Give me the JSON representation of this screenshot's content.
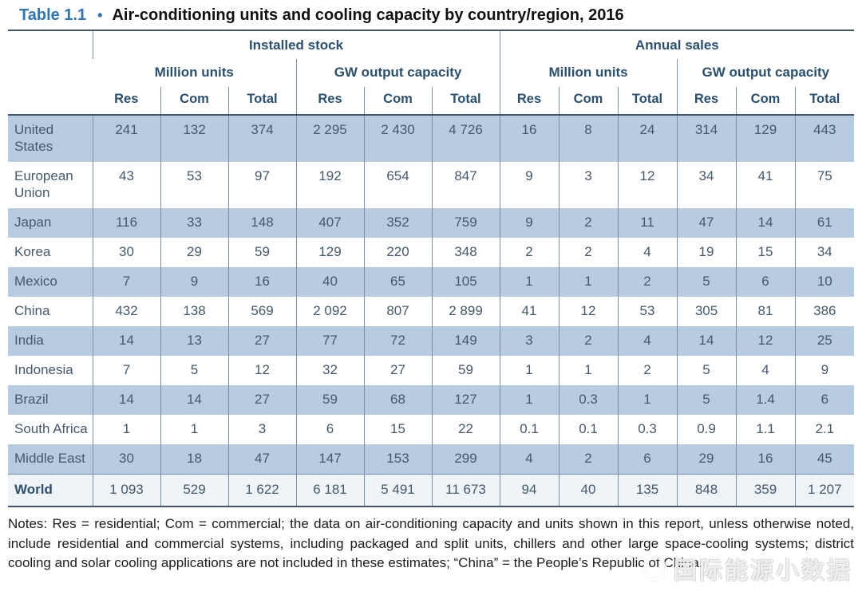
{
  "title": {
    "table_label": "Table 1.1",
    "bullet": "•",
    "text": "Air-conditioning units and cooling capacity by country/region, 2016"
  },
  "table": {
    "col_groups": [
      "Installed stock",
      "Annual sales"
    ],
    "sub_groups": [
      "Million units",
      "GW output capacity",
      "Million units",
      "GW output capacity"
    ],
    "unit_headers": [
      "Res",
      "Com",
      "Total",
      "Res",
      "Com",
      "Total",
      "Res",
      "Com",
      "Total",
      "Res",
      "Com",
      "Total"
    ],
    "rows": [
      {
        "label": "United States",
        "shade": "blue",
        "values": [
          "241",
          "132",
          "374",
          "2 295",
          "2 430",
          "4 726",
          "16",
          "8",
          "24",
          "314",
          "129",
          "443"
        ]
      },
      {
        "label": "European Union",
        "shade": "white",
        "values": [
          "43",
          "53",
          "97",
          "192",
          "654",
          "847",
          "9",
          "3",
          "12",
          "34",
          "41",
          "75"
        ]
      },
      {
        "label": "Japan",
        "shade": "blue",
        "values": [
          "116",
          "33",
          "148",
          "407",
          "352",
          "759",
          "9",
          "2",
          "11",
          "47",
          "14",
          "61"
        ]
      },
      {
        "label": "Korea",
        "shade": "white",
        "values": [
          "30",
          "29",
          "59",
          "129",
          "220",
          "348",
          "2",
          "2",
          "4",
          "19",
          "15",
          "34"
        ]
      },
      {
        "label": "Mexico",
        "shade": "blue",
        "values": [
          "7",
          "9",
          "16",
          "40",
          "65",
          "105",
          "1",
          "1",
          "2",
          "5",
          "6",
          "10"
        ]
      },
      {
        "label": "China",
        "shade": "white",
        "values": [
          "432",
          "138",
          "569",
          "2 092",
          "807",
          "2 899",
          "41",
          "12",
          "53",
          "305",
          "81",
          "386"
        ]
      },
      {
        "label": "India",
        "shade": "blue",
        "values": [
          "14",
          "13",
          "27",
          "77",
          "72",
          "149",
          "3",
          "2",
          "4",
          "14",
          "12",
          "25"
        ]
      },
      {
        "label": "Indonesia",
        "shade": "white",
        "values": [
          "7",
          "5",
          "12",
          "32",
          "27",
          "59",
          "1",
          "1",
          "2",
          "5",
          "4",
          "9"
        ]
      },
      {
        "label": "Brazil",
        "shade": "blue",
        "values": [
          "14",
          "14",
          "27",
          "59",
          "68",
          "127",
          "1",
          "0.3",
          "1",
          "5",
          "1.4",
          "6"
        ]
      },
      {
        "label": "South Africa",
        "shade": "white",
        "values": [
          "1",
          "1",
          "3",
          "6",
          "15",
          "22",
          "0.1",
          "0.1",
          "0.3",
          "0.9",
          "1.1",
          "2.1"
        ]
      },
      {
        "label": "Middle East",
        "shade": "blue",
        "values": [
          "30",
          "18",
          "47",
          "147",
          "153",
          "299",
          "4",
          "2",
          "6",
          "29",
          "16",
          "45"
        ]
      },
      {
        "label": "World",
        "shade": "world",
        "values": [
          "1 093",
          "529",
          "1 622",
          "6 181",
          "5 491",
          "11 673",
          "94",
          "40",
          "135",
          "848",
          "359",
          "1 207"
        ]
      }
    ]
  },
  "notes": "Notes: Res = residential; Com = commercial; the data on air-conditioning capacity and units shown in this report, unless otherwise noted, include residential and commercial systems, including packaged and split units, chillers and other large space-cooling systems; district cooling and solar cooling applications are not included in these estimates; “China” = the People’s Republic of China.",
  "watermark": {
    "text": "国际能源小数据"
  },
  "colors": {
    "title_blue": "#2E75B6",
    "header_text": "#29506F",
    "body_text": "#46586C",
    "stripe_blue": "#B7CBE1",
    "thin_border": "#7E90A5",
    "thick_border": "#44546A",
    "world_row_bg": "#EFF4F9"
  }
}
